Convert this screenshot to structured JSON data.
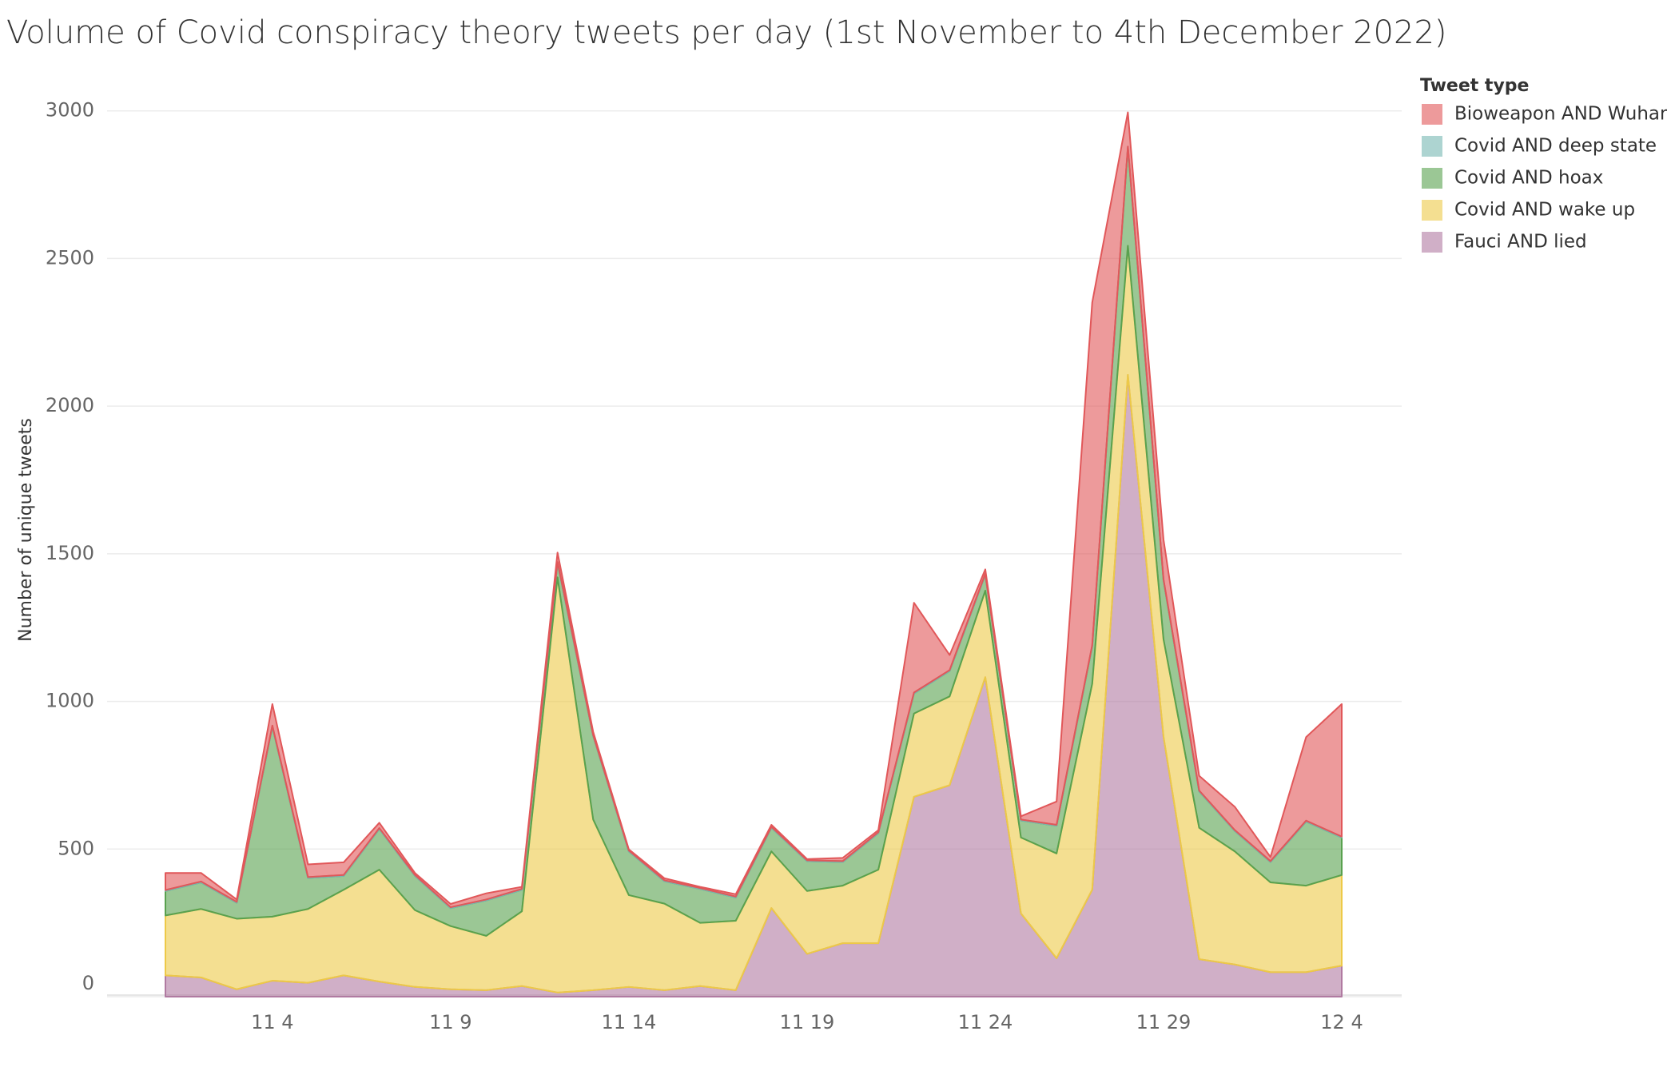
{
  "chart_data": {
    "type": "stacked_area",
    "title": "Volume of Covid conspiracy theory tweets per day (1st November to 4th December 2022)",
    "y_label": "Number of unique tweets",
    "legend_title": "Tweet type",
    "categories": [
      null,
      null,
      null,
      "11 4",
      null,
      null,
      null,
      null,
      "11 9",
      null,
      null,
      null,
      null,
      "11 14",
      null,
      null,
      null,
      null,
      "11 19",
      null,
      null,
      null,
      null,
      "11 24",
      null,
      null,
      null,
      null,
      "11 29",
      null,
      null,
      null,
      null,
      "12 4"
    ],
    "ylim": [
      0,
      3140
    ],
    "yticks": [
      0,
      500,
      1000,
      1500,
      2000,
      2500,
      3000
    ],
    "grid": true,
    "legend": "right",
    "series": [
      {
        "name": "Bioweapon AND Wuhan",
        "color": "#e15759",
        "values": [
          58,
          29,
          8,
          73,
          43,
          43,
          18,
          7,
          11,
          21,
          7,
          32,
          11,
          4,
          7,
          4,
          8,
          7,
          4,
          11,
          7,
          304,
          51,
          15,
          11,
          79,
          1161,
          116,
          135,
          50,
          79,
          14,
          283,
          449
        ]
      },
      {
        "name": "Covid AND deep state",
        "color": "#76b7b2",
        "values": [
          3,
          3,
          3,
          3,
          3,
          3,
          3,
          3,
          3,
          3,
          3,
          3,
          3,
          3,
          3,
          3,
          3,
          3,
          3,
          3,
          3,
          3,
          3,
          3,
          3,
          3,
          3,
          3,
          3,
          3,
          3,
          3,
          3,
          3
        ]
      },
      {
        "name": "Covid AND hoax",
        "color": "#59a14f",
        "values": [
          83,
          90,
          54,
          644,
          105,
          47,
          138,
          116,
          61,
          120,
          73,
          49,
          283,
          148,
          76,
          115,
          79,
          80,
          101,
          80,
          124,
          68,
          86,
          54,
          58,
          94,
          127,
          333,
          200,
          123,
          69,
          69,
          217,
          127
        ]
      },
      {
        "name": "Covid AND wake up",
        "color": "#edc948",
        "values": [
          203,
          232,
          239,
          217,
          250,
          290,
          379,
          260,
          214,
          184,
          253,
          1406,
          578,
          311,
          293,
          214,
          235,
          192,
          213,
          195,
          249,
          282,
          301,
          293,
          257,
          355,
          698,
          437,
          330,
          445,
          383,
          304,
          293,
          307
        ]
      },
      {
        "name": "Fauci AND lied",
        "color": "#b07aa1",
        "values": [
          72,
          65,
          25,
          54,
          47,
          72,
          51,
          33,
          25,
          22,
          36,
          14,
          22,
          33,
          22,
          36,
          22,
          300,
          145,
          181,
          181,
          677,
          716,
          1082,
          282,
          130,
          362,
          2106,
          880,
          127,
          109,
          83,
          83,
          105
        ]
      }
    ]
  }
}
